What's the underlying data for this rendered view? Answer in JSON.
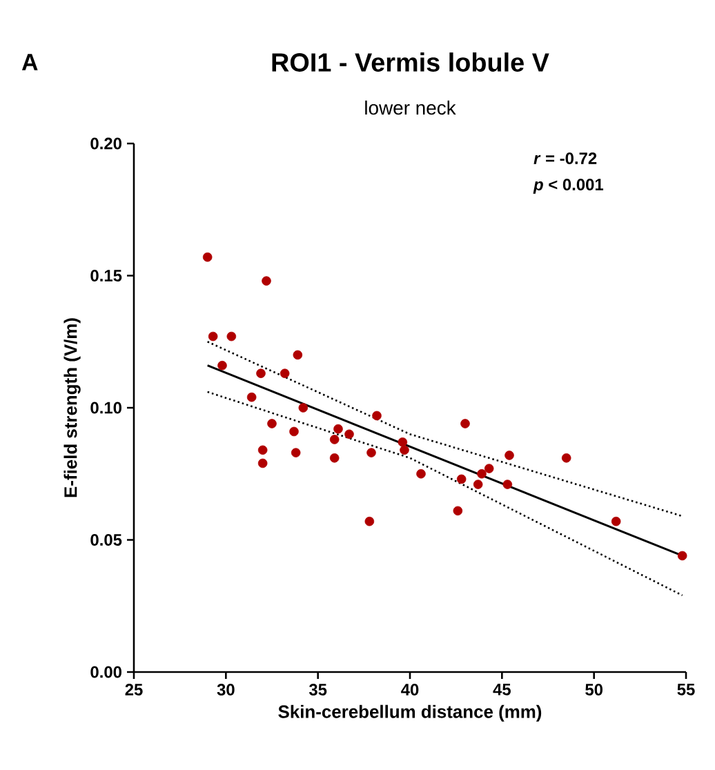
{
  "chart_data": {
    "type": "scatter",
    "title": "ROI1 - Vermis lobule V",
    "subtitle": "lower neck",
    "xlabel": "Skin-cerebellum distance (mm)",
    "ylabel": "E-field strength (V/m)",
    "annotations": [
      "A",
      "*r* = -0.72",
      "*p* < 0.001"
    ],
    "xlim": [
      25,
      55
    ],
    "ylim": [
      0,
      0.2
    ],
    "xticks": [
      25,
      30,
      35,
      40,
      45,
      50,
      55
    ],
    "yticks": [
      {
        "value": 0,
        "label": "0.00"
      },
      {
        "value": 0.05,
        "label": "0.05"
      },
      {
        "value": 0.1,
        "label": "0.10"
      },
      {
        "value": 0.15,
        "label": "0.15"
      },
      {
        "value": 0.2,
        "label": "0.20"
      }
    ],
    "series": [
      {
        "color": "#b00000",
        "marker": "circle",
        "x": [
          29.0,
          32.2,
          29.3,
          30.3,
          33.9,
          29.8,
          31.9,
          33.2,
          31.4,
          34.2,
          38.2,
          32.5,
          36.1,
          33.7,
          36.7,
          35.9,
          39.6,
          39.7,
          32.0,
          33.8,
          37.9,
          35.9,
          32.0,
          40.6,
          37.8,
          43.0,
          45.4,
          48.5,
          44.3,
          43.9,
          42.8,
          43.7,
          45.3,
          42.6,
          51.2,
          54.8
        ],
        "values": [
          0.157,
          0.148,
          0.127,
          0.127,
          0.12,
          0.116,
          0.113,
          0.113,
          0.104,
          0.1,
          0.097,
          0.094,
          0.092,
          0.091,
          0.09,
          0.088,
          0.087,
          0.084,
          0.084,
          0.083,
          0.083,
          0.081,
          0.079,
          0.075,
          0.057,
          0.094,
          0.082,
          0.081,
          0.077,
          0.075,
          0.073,
          0.071,
          0.071,
          0.061,
          0.057,
          0.044
        ]
      },
      {
        "type": "line",
        "color": "#000000",
        "marker": "none",
        "line_style": "solid",
        "x": [
          29.0,
          54.8
        ],
        "values": [
          0.116,
          0.044
        ]
      },
      {
        "type": "line",
        "color": "#000000",
        "marker": "none",
        "line_style": "dotted",
        "x": [
          29.0,
          40.0,
          54.8
        ],
        "values": [
          0.125,
          0.09,
          0.059
        ]
      },
      {
        "type": "line",
        "color": "#000000",
        "marker": "none",
        "line_style": "dotted",
        "x": [
          29.0,
          40.0,
          54.8
        ],
        "values": [
          0.106,
          0.081,
          0.029
        ]
      }
    ]
  }
}
